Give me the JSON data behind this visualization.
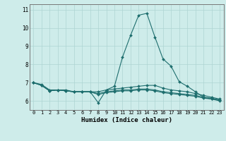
{
  "xlabel": "Humidex (Indice chaleur)",
  "xlim": [
    -0.5,
    23.5
  ],
  "ylim": [
    5.5,
    11.3
  ],
  "yticks": [
    6,
    7,
    8,
    9,
    10,
    11
  ],
  "xticks": [
    0,
    1,
    2,
    3,
    4,
    5,
    6,
    7,
    8,
    9,
    10,
    11,
    12,
    13,
    14,
    15,
    16,
    17,
    18,
    19,
    20,
    21,
    22,
    23
  ],
  "bg_color": "#ceecea",
  "line_color": "#1e6e6e",
  "grid_color": "#aed4d2",
  "lines": [
    [
      7.0,
      6.9,
      6.6,
      6.6,
      6.6,
      6.5,
      6.5,
      6.5,
      5.9,
      6.6,
      6.8,
      8.4,
      9.6,
      10.7,
      10.8,
      9.5,
      8.3,
      7.9,
      7.05,
      6.8,
      6.5,
      6.2,
      6.1,
      6.05
    ],
    [
      7.0,
      6.85,
      6.55,
      6.6,
      6.55,
      6.5,
      6.5,
      6.5,
      6.5,
      6.6,
      6.65,
      6.7,
      6.75,
      6.8,
      6.85,
      6.85,
      6.7,
      6.6,
      6.55,
      6.5,
      6.4,
      6.3,
      6.2,
      6.1
    ],
    [
      7.0,
      6.85,
      6.55,
      6.6,
      6.55,
      6.5,
      6.5,
      6.5,
      6.4,
      6.5,
      6.55,
      6.6,
      6.6,
      6.65,
      6.65,
      6.6,
      6.5,
      6.45,
      6.4,
      6.35,
      6.3,
      6.2,
      6.15,
      6.05
    ],
    [
      7.0,
      6.85,
      6.55,
      6.6,
      6.55,
      6.5,
      6.5,
      6.5,
      6.35,
      6.45,
      6.5,
      6.55,
      6.55,
      6.6,
      6.6,
      6.55,
      6.45,
      6.4,
      6.35,
      6.3,
      6.25,
      6.15,
      6.1,
      6.0
    ]
  ]
}
